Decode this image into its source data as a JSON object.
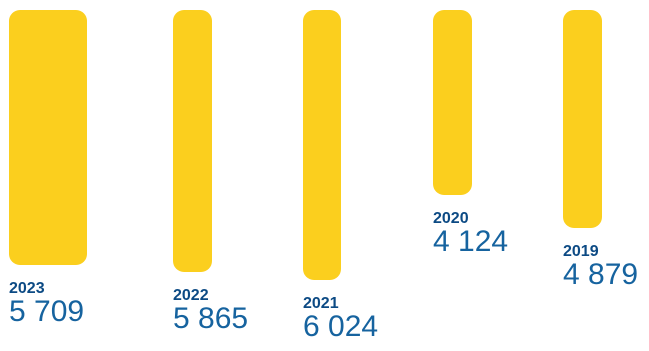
{
  "chart_data": {
    "type": "bar",
    "orientation": "vertical",
    "categories": [
      "2023",
      "2022",
      "2021",
      "2020",
      "2019"
    ],
    "values": [
      5709,
      5865,
      6024,
      4124,
      4879
    ],
    "value_labels": [
      "5 709",
      "5 865",
      "6 024",
      "4 124",
      "4 879"
    ],
    "title": "",
    "xlabel": "",
    "ylabel": "",
    "grid": false,
    "legend": "none"
  },
  "colors": {
    "bar": "#FBCF1E",
    "year_text": "#0C4A84",
    "value_text": "#16639F"
  }
}
